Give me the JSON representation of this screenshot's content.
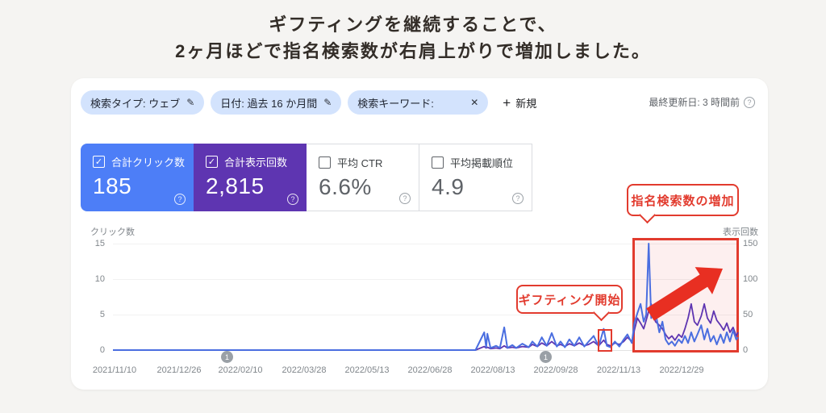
{
  "headline": {
    "line1": "ギフティングを継続することで、",
    "line2": "2ヶ月ほどで指名検索数が右肩上がりで増加しました。"
  },
  "filters": {
    "chips": [
      {
        "label": "検索タイプ: ウェブ",
        "icon": "edit"
      },
      {
        "label": "日付: 過去 16 か月間",
        "icon": "edit"
      },
      {
        "label": "検索キーワード:",
        "icon": "close"
      }
    ],
    "new_label": "新規",
    "last_updated": "最終更新日: 3 時間前"
  },
  "metrics": [
    {
      "label": "合計クリック数",
      "value": "185",
      "selected": true,
      "color": "#4d7ef7"
    },
    {
      "label": "合計表示回数",
      "value": "2,815",
      "selected": true,
      "color": "#5e35b1"
    },
    {
      "label": "平均 CTR",
      "value": "6.6%",
      "selected": false
    },
    {
      "label": "平均掲載順位",
      "value": "4.9",
      "selected": false
    }
  ],
  "annotations": {
    "gifting_start": "ギフティング開始",
    "branded_increase": "指名検索数の増加",
    "highlight_color": "#e23b2e"
  },
  "chart_data": {
    "type": "line",
    "ylabel_left": "クリック数",
    "ylabel_right": "表示回数",
    "y_ticks_left": [
      "15",
      "10",
      "5",
      "0"
    ],
    "y_ticks_right": [
      "150",
      "100",
      "50",
      "0"
    ],
    "ylim_left": [
      0,
      15
    ],
    "ylim_right": [
      0,
      150
    ],
    "grid": true,
    "x_tick_labels": [
      "2021/11/10",
      "2021/12/26",
      "2022/02/10",
      "2022/03/28",
      "2022/05/13",
      "2022/06/28",
      "2022/08/13",
      "2022/09/28",
      "2022/11/13",
      "2022/12/29"
    ],
    "markers": [
      {
        "label": "1",
        "near": "2022/02/10"
      },
      {
        "label": "1",
        "near": "2022/09/28"
      }
    ],
    "series": [
      {
        "name": "合計クリック数",
        "axis": "left",
        "color": "#4a6ee0"
      },
      {
        "name": "合計表示回数",
        "axis": "right",
        "color": "#5e35b1"
      }
    ],
    "points_format": [
      "x_fraction",
      "clicks",
      "impressions"
    ],
    "points": [
      [
        0,
        0,
        0
      ],
      [
        0.58,
        0,
        0
      ],
      [
        0.594,
        2.5,
        5
      ],
      [
        0.597,
        0.4,
        3
      ],
      [
        0.599,
        2.3,
        4
      ],
      [
        0.604,
        0.3,
        2
      ],
      [
        0.613,
        0.6,
        3
      ],
      [
        0.619,
        0.3,
        2
      ],
      [
        0.626,
        3.2,
        6
      ],
      [
        0.631,
        0.3,
        3
      ],
      [
        0.639,
        0.7,
        4
      ],
      [
        0.645,
        0.3,
        3
      ],
      [
        0.655,
        0.9,
        5
      ],
      [
        0.665,
        0.4,
        4
      ],
      [
        0.671,
        1.2,
        8
      ],
      [
        0.679,
        0.5,
        5
      ],
      [
        0.686,
        1.8,
        10
      ],
      [
        0.694,
        0.6,
        6
      ],
      [
        0.702,
        2.4,
        12
      ],
      [
        0.71,
        0.5,
        6
      ],
      [
        0.716,
        1.2,
        8
      ],
      [
        0.723,
        0.4,
        5
      ],
      [
        0.73,
        1.5,
        9
      ],
      [
        0.738,
        0.6,
        6
      ],
      [
        0.746,
        1.8,
        10
      ],
      [
        0.754,
        0.5,
        6
      ],
      [
        0.761,
        1.2,
        8
      ],
      [
        0.769,
        2,
        12
      ],
      [
        0.777,
        0.5,
        6
      ],
      [
        0.785,
        3,
        14
      ],
      [
        0.79,
        0.6,
        8
      ],
      [
        0.796,
        0.4,
        6
      ],
      [
        0.803,
        1.2,
        10
      ],
      [
        0.81,
        0.5,
        8
      ],
      [
        0.817,
        1.5,
        12
      ],
      [
        0.823,
        2.2,
        18
      ],
      [
        0.83,
        1,
        12
      ],
      [
        0.834,
        3.8,
        28
      ],
      [
        0.839,
        5.2,
        45
      ],
      [
        0.844,
        6.5,
        38
      ],
      [
        0.849,
        4,
        30
      ],
      [
        0.853,
        5,
        42
      ],
      [
        0.857,
        15,
        55
      ],
      [
        0.861,
        4.5,
        65
      ],
      [
        0.865,
        6,
        48
      ],
      [
        0.868,
        5.2,
        40
      ],
      [
        0.874,
        2.5,
        35
      ],
      [
        0.879,
        4,
        30
      ],
      [
        0.884,
        1.5,
        22
      ],
      [
        0.889,
        0.8,
        16
      ],
      [
        0.894,
        1.2,
        20
      ],
      [
        0.899,
        0.6,
        14
      ],
      [
        0.905,
        1.5,
        22
      ],
      [
        0.91,
        1,
        18
      ],
      [
        0.915,
        2,
        30
      ],
      [
        0.92,
        1,
        45
      ],
      [
        0.925,
        2.5,
        65
      ],
      [
        0.93,
        1.2,
        40
      ],
      [
        0.935,
        2.2,
        35
      ],
      [
        0.941,
        3.5,
        48
      ],
      [
        0.946,
        1.5,
        65
      ],
      [
        0.951,
        3,
        45
      ],
      [
        0.956,
        1.2,
        38
      ],
      [
        0.961,
        2,
        55
      ],
      [
        0.966,
        0.8,
        42
      ],
      [
        0.972,
        2.2,
        35
      ],
      [
        0.977,
        1,
        28
      ],
      [
        0.982,
        2.5,
        38
      ],
      [
        0.987,
        1.2,
        25
      ],
      [
        0.992,
        2.8,
        32
      ],
      [
        0.997,
        1.5,
        20
      ],
      [
        1,
        1.8,
        25
      ]
    ]
  }
}
